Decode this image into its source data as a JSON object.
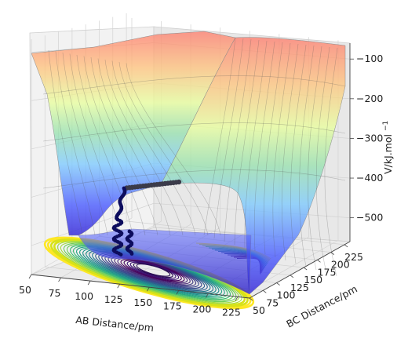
{
  "chart_data": {
    "type": "surface3d",
    "title": "",
    "xlabel": "AB Distance/pm",
    "ylabel": "BC Distance/pm",
    "zlabel_main": "V/kJ.mol",
    "zlabel_sup": "−1",
    "x_ticks": [
      "50",
      "75",
      "100",
      "125",
      "150",
      "175",
      "200",
      "225"
    ],
    "y_ticks": [
      "50",
      "75",
      "100",
      "125",
      "150",
      "175",
      "200",
      "225"
    ],
    "z_ticks": [
      "−100",
      "−200",
      "−300",
      "−400",
      "−500"
    ],
    "xlim": [
      50,
      235
    ],
    "ylim": [
      50,
      235
    ],
    "zlim": [
      -560,
      -60
    ],
    "grid": true,
    "colormap_surface": "jet",
    "colormap_contour": "viridis",
    "trajectory_color": "#0d0d5e"
  }
}
